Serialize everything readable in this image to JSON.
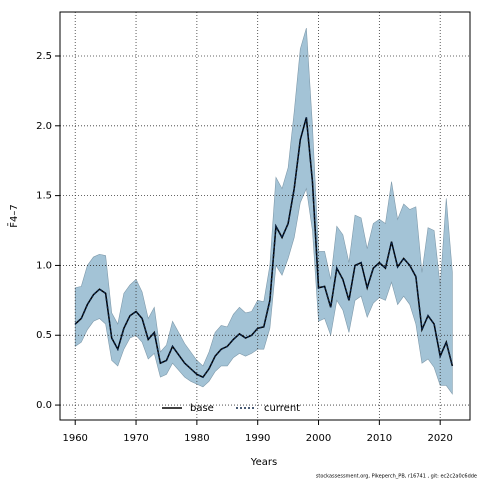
{
  "chart_data": {
    "type": "line",
    "xlabel": "Years",
    "ylabel": "F̄4–7",
    "footer": "stockassessment.org, Pikeperch_PB, r16741 , git: ec2c2a0c6dde",
    "x": [
      1960,
      1961,
      1962,
      1963,
      1964,
      1965,
      1966,
      1967,
      1968,
      1969,
      1970,
      1971,
      1972,
      1973,
      1974,
      1975,
      1976,
      1977,
      1978,
      1979,
      1980,
      1981,
      1982,
      1983,
      1984,
      1985,
      1986,
      1987,
      1988,
      1989,
      1990,
      1991,
      1992,
      1993,
      1994,
      1995,
      1996,
      1997,
      1998,
      1999,
      2000,
      2001,
      2002,
      2003,
      2004,
      2005,
      2006,
      2007,
      2008,
      2009,
      2010,
      2011,
      2012,
      2013,
      2014,
      2015,
      2016,
      2017,
      2018,
      2019,
      2020,
      2021,
      2022
    ],
    "series": [
      {
        "name": "base",
        "color": "#000000",
        "style": "solid",
        "values": [
          0.58,
          0.62,
          0.72,
          0.79,
          0.83,
          0.8,
          0.48,
          0.4,
          0.55,
          0.64,
          0.67,
          0.62,
          0.47,
          0.52,
          0.3,
          0.32,
          0.42,
          0.36,
          0.3,
          0.26,
          0.22,
          0.2,
          0.26,
          0.35,
          0.4,
          0.42,
          0.47,
          0.51,
          0.48,
          0.5,
          0.55,
          0.56,
          0.75,
          1.28,
          1.2,
          1.3,
          1.55,
          1.9,
          2.06,
          1.6,
          0.84,
          0.85,
          0.7,
          0.98,
          0.9,
          0.75,
          1.0,
          1.02,
          0.84,
          0.98,
          1.02,
          0.98,
          1.17,
          0.99,
          1.05,
          1.0,
          0.92,
          0.54,
          0.64,
          0.58,
          0.35,
          0.45,
          0.28
        ]
      },
      {
        "name": "current",
        "color": "#0b2447",
        "style": "dotted",
        "values": [
          0.58,
          0.62,
          0.72,
          0.79,
          0.83,
          0.8,
          0.48,
          0.4,
          0.55,
          0.64,
          0.67,
          0.62,
          0.47,
          0.52,
          0.3,
          0.32,
          0.42,
          0.36,
          0.3,
          0.26,
          0.22,
          0.2,
          0.26,
          0.35,
          0.4,
          0.42,
          0.47,
          0.51,
          0.48,
          0.5,
          0.55,
          0.56,
          0.75,
          1.28,
          1.2,
          1.3,
          1.55,
          1.9,
          2.06,
          1.6,
          0.84,
          0.85,
          0.7,
          0.98,
          0.9,
          0.75,
          1.0,
          1.02,
          0.84,
          0.98,
          1.02,
          0.98,
          1.17,
          0.99,
          1.05,
          1.0,
          0.92,
          0.54,
          0.64,
          0.58,
          0.35,
          0.45,
          0.28
        ]
      }
    ],
    "band": {
      "color": "#a3c3d6",
      "upper": [
        0.84,
        0.85,
        1.0,
        1.06,
        1.08,
        1.07,
        0.66,
        0.58,
        0.8,
        0.86,
        0.9,
        0.81,
        0.62,
        0.7,
        0.38,
        0.43,
        0.6,
        0.52,
        0.44,
        0.38,
        0.32,
        0.28,
        0.38,
        0.52,
        0.57,
        0.56,
        0.65,
        0.7,
        0.66,
        0.67,
        0.75,
        0.74,
        1.0,
        1.63,
        1.55,
        1.7,
        2.1,
        2.55,
        2.7,
        2.0,
        1.1,
        1.1,
        0.9,
        1.28,
        1.22,
        1.02,
        1.36,
        1.34,
        1.12,
        1.3,
        1.33,
        1.3,
        1.6,
        1.33,
        1.44,
        1.4,
        1.42,
        0.95,
        1.27,
        1.25,
        0.85,
        1.48,
        0.95
      ],
      "lower": [
        0.42,
        0.45,
        0.54,
        0.6,
        0.62,
        0.58,
        0.32,
        0.28,
        0.4,
        0.48,
        0.5,
        0.45,
        0.33,
        0.37,
        0.2,
        0.22,
        0.3,
        0.25,
        0.2,
        0.17,
        0.15,
        0.13,
        0.17,
        0.24,
        0.28,
        0.28,
        0.34,
        0.37,
        0.35,
        0.37,
        0.4,
        0.4,
        0.55,
        1.0,
        0.93,
        1.05,
        1.2,
        1.45,
        1.55,
        1.25,
        0.6,
        0.62,
        0.5,
        0.75,
        0.68,
        0.52,
        0.75,
        0.78,
        0.63,
        0.73,
        0.77,
        0.75,
        0.88,
        0.72,
        0.78,
        0.72,
        0.58,
        0.3,
        0.33,
        0.27,
        0.14,
        0.14,
        0.08
      ]
    },
    "xlim": [
      1957.5,
      2024.9
    ],
    "ylim": [
      -0.107,
      2.815
    ],
    "xticks": [
      1960,
      1970,
      1980,
      1990,
      2000,
      2010,
      2020
    ],
    "yticks": [
      {
        "value": 0,
        "label": "0.0"
      },
      0.5,
      {
        "value": 1,
        "label": "1.0"
      },
      1.5,
      {
        "value": 2,
        "label": "2.0"
      },
      2.5
    ],
    "grid": true,
    "legend": "bottom"
  }
}
